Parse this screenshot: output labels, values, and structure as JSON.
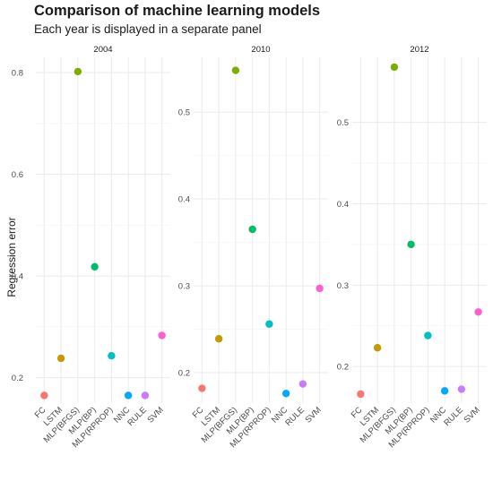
{
  "colors": {
    "FC": "#F8766D",
    "LSTM": "#C49A00",
    "MLP(BFGS)": "#7CAE00",
    "MLP(BP)": "#00BE67",
    "MLP(RPROP)": "#00BFC4",
    "NNC": "#00A9FF",
    "RULE": "#C77CFF",
    "SVM": "#FF61CC",
    "grid": "#ebebeb"
  },
  "chart_data": [
    {
      "type": "scatter",
      "title": "Comparison of machine learning models",
      "subtitle": "Each year is displayed in a separate panel",
      "panel": "2004",
      "ylabel": "Regression error",
      "categories": [
        "FC",
        "LSTM",
        "MLP(BFGS)",
        "MLP(BP)",
        "MLP(RPROP)",
        "NNC",
        "RULE",
        "SVM"
      ],
      "values": [
        0.165,
        0.238,
        0.802,
        0.418,
        0.243,
        0.165,
        0.165,
        0.283
      ],
      "ylim": [
        0.15,
        0.83
      ],
      "yticks": [
        0.2,
        0.4,
        0.6,
        0.8
      ],
      "grid": true
    },
    {
      "type": "scatter",
      "panel": "2010",
      "categories": [
        "FC",
        "LSTM",
        "MLP(BFGS)",
        "MLP(BP)",
        "MLP(RPROP)",
        "NNC",
        "RULE",
        "SVM"
      ],
      "values": [
        0.182,
        0.239,
        0.548,
        0.365,
        0.256,
        0.176,
        0.187,
        0.297
      ],
      "ylim": [
        0.165,
        0.563
      ],
      "yticks": [
        0.2,
        0.3,
        0.4,
        0.5
      ],
      "grid": true
    },
    {
      "type": "scatter",
      "panel": "2012",
      "categories": [
        "FC",
        "LSTM",
        "MLP(BFGS)",
        "MLP(BP)",
        "MLP(RPROP)",
        "NNC",
        "RULE",
        "SVM"
      ],
      "values": [
        0.166,
        0.223,
        0.568,
        0.35,
        0.238,
        0.17,
        0.172,
        0.267
      ],
      "ylim": [
        0.155,
        0.58
      ],
      "yticks": [
        0.2,
        0.3,
        0.4,
        0.5
      ],
      "grid": true
    }
  ]
}
